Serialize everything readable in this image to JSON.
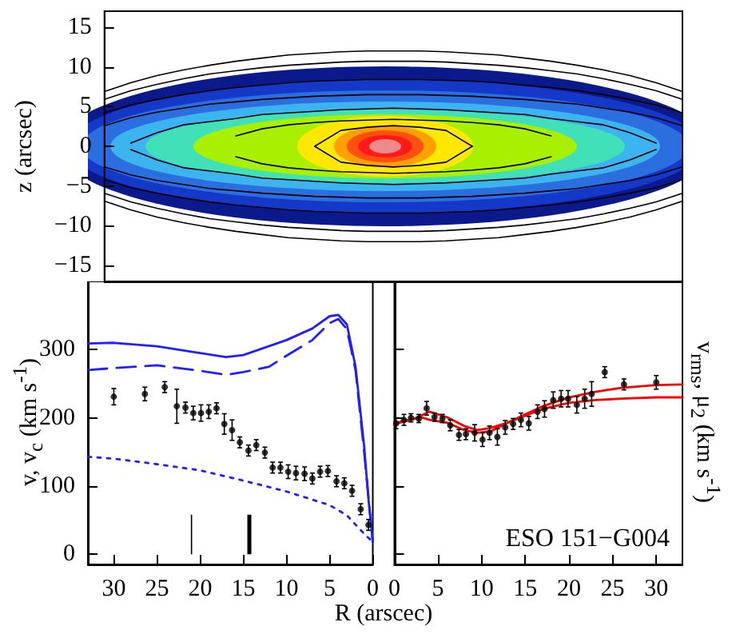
{
  "chart_data": [
    {
      "type": "line",
      "ylabel": "z (arcsec)",
      "categories": [
        null,
        null,
        null,
        null,
        null,
        null,
        null,
        null,
        null,
        null,
        null,
        null,
        null,
        null,
        null,
        null,
        null,
        null,
        null,
        null,
        null,
        null,
        null
      ],
      "ylim": [
        -17,
        17
      ],
      "yticks": [
        -15,
        -10,
        -5,
        0,
        5,
        10,
        15
      ],
      "tick_labels": "y",
      "marker": "none",
      "series": [
        {
          "color": "#000000",
          "line_style": "solid",
          "values": [
            6.9,
            8.0,
            8.9,
            9.6,
            10.2,
            10.7,
            11.1,
            11.5,
            11.7,
            11.9,
            12.0,
            12.0,
            12.0,
            11.9,
            11.7,
            11.5,
            11.1,
            10.7,
            10.2,
            9.6,
            8.9,
            8.0,
            6.9
          ]
        },
        {
          "color": "#000000",
          "line_style": "solid",
          "values": [
            -6.9,
            -8.0,
            -8.9,
            -9.6,
            -10.2,
            -10.7,
            -11.1,
            -11.5,
            -11.7,
            -11.9,
            -12.0,
            -12.0,
            -12.0,
            -11.9,
            -11.7,
            -11.5,
            -11.1,
            -10.7,
            -10.2,
            -9.6,
            -8.9,
            -8.0,
            -6.9
          ]
        },
        {
          "color": "#000000",
          "line_style": "solid",
          "values": [
            5.9,
            7.0,
            7.8,
            8.5,
            9.1,
            9.5,
            9.9,
            10.2,
            10.4,
            10.6,
            10.7,
            10.7,
            10.7,
            10.6,
            10.4,
            10.2,
            9.9,
            9.5,
            9.1,
            8.5,
            7.8,
            7.0,
            5.9
          ]
        },
        {
          "color": "#000000",
          "line_style": "solid",
          "values": [
            -5.9,
            -7.0,
            -7.8,
            -8.5,
            -9.1,
            -9.5,
            -9.9,
            -10.2,
            -10.4,
            -10.6,
            -10.7,
            -10.7,
            -10.7,
            -10.6,
            -10.4,
            -10.2,
            -9.9,
            -9.5,
            -9.1,
            -8.5,
            -7.8,
            -7.0,
            -5.9
          ]
        },
        {
          "color": "#000000",
          "line_style": "solid",
          "values": [
            4.2,
            5.2,
            5.9,
            6.5,
            7.0,
            7.4,
            7.7,
            8.0,
            8.2,
            8.3,
            8.4,
            8.4,
            8.4,
            8.3,
            8.2,
            8.0,
            7.7,
            7.4,
            7.0,
            6.5,
            5.9,
            5.2,
            4.2
          ]
        },
        {
          "color": "#000000",
          "line_style": "solid",
          "values": [
            -4.2,
            -5.2,
            -5.9,
            -6.5,
            -7.0,
            -7.4,
            -7.7,
            -8.0,
            -8.2,
            -8.3,
            -8.4,
            -8.4,
            -8.4,
            -8.3,
            -8.2,
            -8.0,
            -7.7,
            -7.4,
            -7.0,
            -6.5,
            -5.9,
            -5.2,
            -4.2
          ]
        },
        {
          "color": "#000000",
          "line_style": "solid",
          "values": [
            2.6,
            3.6,
            4.3,
            4.8,
            5.3,
            5.6,
            5.9,
            6.1,
            6.3,
            6.4,
            6.5,
            6.5,
            6.5,
            6.4,
            6.3,
            6.1,
            5.9,
            5.6,
            5.3,
            4.8,
            4.3,
            3.6,
            2.6
          ]
        },
        {
          "color": "#000000",
          "line_style": "solid",
          "values": [
            -2.6,
            -3.6,
            -4.3,
            -4.8,
            -5.3,
            -5.6,
            -5.9,
            -6.1,
            -6.3,
            -6.4,
            -6.5,
            -6.5,
            -6.5,
            -6.4,
            -6.3,
            -6.1,
            -5.9,
            -5.6,
            -5.3,
            -4.8,
            -4.3,
            -3.6,
            -2.6
          ]
        },
        {
          "color": "#000000",
          "line_style": "solid",
          "values": [
            null,
            0.4,
            1.7,
            2.7,
            3.1,
            3.5,
            4.0,
            4.2,
            4.4,
            4.6,
            4.7,
            4.8,
            4.7,
            4.6,
            4.4,
            4.2,
            4.0,
            3.5,
            3.1,
            2.7,
            1.7,
            0.4,
            null
          ]
        },
        {
          "color": "#000000",
          "line_style": "solid",
          "values": [
            null,
            -0.4,
            -1.7,
            -2.7,
            -3.1,
            -3.5,
            -4.0,
            -4.2,
            -4.4,
            -4.6,
            -4.7,
            -4.8,
            -4.7,
            -4.6,
            -4.4,
            -4.2,
            -4.0,
            -3.5,
            -3.1,
            -2.7,
            -1.7,
            -0.4,
            null
          ]
        },
        {
          "color": "#000000",
          "line_style": "solid",
          "values": [
            null,
            null,
            null,
            null,
            null,
            1.3,
            2.2,
            2.7,
            3.0,
            3.2,
            3.3,
            3.4,
            3.3,
            3.2,
            3.0,
            2.7,
            2.2,
            1.3,
            null,
            null,
            null,
            null,
            null
          ]
        },
        {
          "color": "#000000",
          "line_style": "solid",
          "values": [
            null,
            null,
            null,
            null,
            null,
            -1.3,
            -2.2,
            -2.7,
            -3.0,
            -3.2,
            -3.3,
            -3.4,
            -3.3,
            -3.2,
            -3.0,
            -2.7,
            -2.2,
            -1.3,
            null,
            null,
            null,
            null,
            null
          ]
        },
        {
          "color": "#000000",
          "line_style": "solid",
          "values": [
            null,
            null,
            null,
            null,
            null,
            null,
            null,
            null,
            0,
            2.0,
            2.4,
            2.6,
            2.4,
            2.0,
            0,
            null,
            null,
            null,
            null,
            null,
            null,
            null,
            null
          ]
        },
        {
          "color": "#000000",
          "line_style": "solid",
          "values": [
            null,
            null,
            null,
            null,
            null,
            null,
            null,
            null,
            0,
            -2.0,
            -2.4,
            -2.6,
            -2.4,
            -2.0,
            0,
            null,
            null,
            null,
            null,
            null,
            null,
            null,
            null
          ]
        }
      ]
    },
    {
      "type": "line",
      "xlabel": "R (arscec)",
      "ylabel": "v, v$_{c}$ (km s$^{-1}$)",
      "xlim": [
        33,
        0
      ],
      "xticks": [
        30,
        25,
        20,
        15,
        10,
        5,
        0
      ],
      "ylim": [
        -15,
        400
      ],
      "yticks": [
        0,
        100,
        200,
        300
      ],
      "marker": "circle",
      "series": [
        {
          "type": "scatter",
          "color": "#000000",
          "x": [
            30,
            26.4,
            24.1,
            22.7,
            21.7,
            20.8,
            19.9,
            19.0,
            18.1,
            17.2,
            16.3,
            15.4,
            14.4,
            13.5,
            12.5,
            11.6,
            10.7,
            9.8,
            8.9,
            7.9,
            7.0,
            6.1,
            5.2,
            4.2,
            3.3,
            2.4,
            1.4,
            0.5
          ],
          "values": [
            231,
            235,
            245,
            217,
            215,
            207,
            207,
            209,
            214,
            191,
            182,
            164,
            152,
            160,
            149,
            127,
            127,
            121,
            119,
            118,
            111,
            121,
            122,
            107,
            104,
            93,
            66,
            43
          ],
          "errors": [
            12,
            10,
            8,
            25,
            8,
            10,
            12,
            10,
            8,
            15,
            15,
            8,
            8,
            8,
            8,
            8,
            8,
            10,
            10,
            10,
            8,
            8,
            8,
            8,
            8,
            8,
            8,
            8
          ]
        },
        {
          "color": "#2020ff",
          "line_style": "solid",
          "marker": "none",
          "x": [
            33,
            30,
            25,
            20,
            17,
            15,
            10,
            7,
            5,
            4,
            3,
            2,
            1,
            0.5,
            0
          ],
          "values": [
            309,
            310,
            305,
            295,
            289,
            292,
            314,
            331,
            349,
            351,
            337,
            275,
            158,
            80,
            18
          ]
        },
        {
          "color": "#2020ff",
          "line_style": "dashed",
          "marker": "none",
          "x": [
            33,
            30,
            25,
            20,
            17,
            15,
            12,
            10,
            7,
            5,
            4,
            3,
            2,
            1,
            0
          ],
          "values": [
            270,
            273,
            277,
            269,
            263,
            267,
            275,
            291,
            314,
            339,
            345,
            330,
            270,
            150,
            18
          ]
        },
        {
          "color": "#2020ff",
          "line_style": "dotted",
          "marker": "none",
          "x": [
            33,
            30,
            25,
            20,
            15,
            10,
            5,
            3,
            1,
            0
          ],
          "values": [
            143,
            140,
            132,
            123,
            108,
            92,
            72,
            57,
            30,
            18
          ]
        }
      ],
      "ref_lines": [
        {
          "axis": "x",
          "value": 21,
          "color": "#000000"
        },
        {
          "axis": "x",
          "value": 14.3,
          "color": "#000000"
        }
      ]
    },
    {
      "type": "line",
      "ylabel": "v$_{rms}$, μ$_{2}$ (km s$^{-1}$)",
      "xlim": [
        0,
        33
      ],
      "xticks": [
        0,
        5,
        10,
        15,
        20,
        25,
        30
      ],
      "ylim": [
        -15,
        400
      ],
      "yticks": [
        0,
        100,
        200,
        300
      ],
      "tick_labels": "x",
      "marker": "circle",
      "annotations": [
        "ESO 151−G004"
      ],
      "series": [
        {
          "type": "scatter",
          "color": "#000000",
          "x": [
            0.2,
            1.1,
            1.9,
            2.8,
            3.7,
            4.6,
            5.5,
            6.4,
            7.4,
            8.2,
            9.2,
            10.1,
            10.9,
            11.8,
            12.7,
            13.6,
            14.5,
            15.4,
            16.4,
            17.2,
            18.2,
            19.1,
            19.9,
            20.9,
            21.8,
            22.6,
            24.1,
            26.3,
            30
          ],
          "values": [
            192,
            197,
            200,
            199,
            214,
            201,
            199,
            189,
            175,
            176,
            178,
            168,
            178,
            172,
            186,
            191,
            197,
            192,
            209,
            213,
            226,
            228,
            228,
            219,
            228,
            235,
            267,
            249,
            252
          ],
          "errors": [
            8,
            8,
            6,
            6,
            10,
            6,
            6,
            8,
            8,
            8,
            12,
            10,
            10,
            12,
            10,
            8,
            10,
            10,
            10,
            12,
            12,
            12,
            12,
            12,
            14,
            18,
            8,
            8,
            10
          ]
        },
        {
          "color": "#ff0000",
          "line_style": "solid",
          "marker": "none",
          "x": [
            0,
            3,
            4,
            6,
            8,
            9.5,
            11,
            13,
            15,
            17,
            20,
            23,
            26,
            30,
            33
          ],
          "values": [
            192,
            201,
            197,
            193,
            182,
            178,
            180,
            193,
            205,
            217,
            230,
            238,
            244,
            248,
            249
          ]
        },
        {
          "color": "#ff0000",
          "line_style": "solid",
          "marker": "none",
          "x": [
            0,
            2,
            4,
            6,
            8,
            9.5,
            11,
            13,
            15,
            17,
            20,
            23,
            26,
            30,
            33
          ],
          "values": [
            191,
            197,
            209,
            201,
            188,
            182,
            185,
            193,
            203,
            213,
            222,
            226,
            228,
            230,
            230
          ]
        }
      ]
    }
  ]
}
